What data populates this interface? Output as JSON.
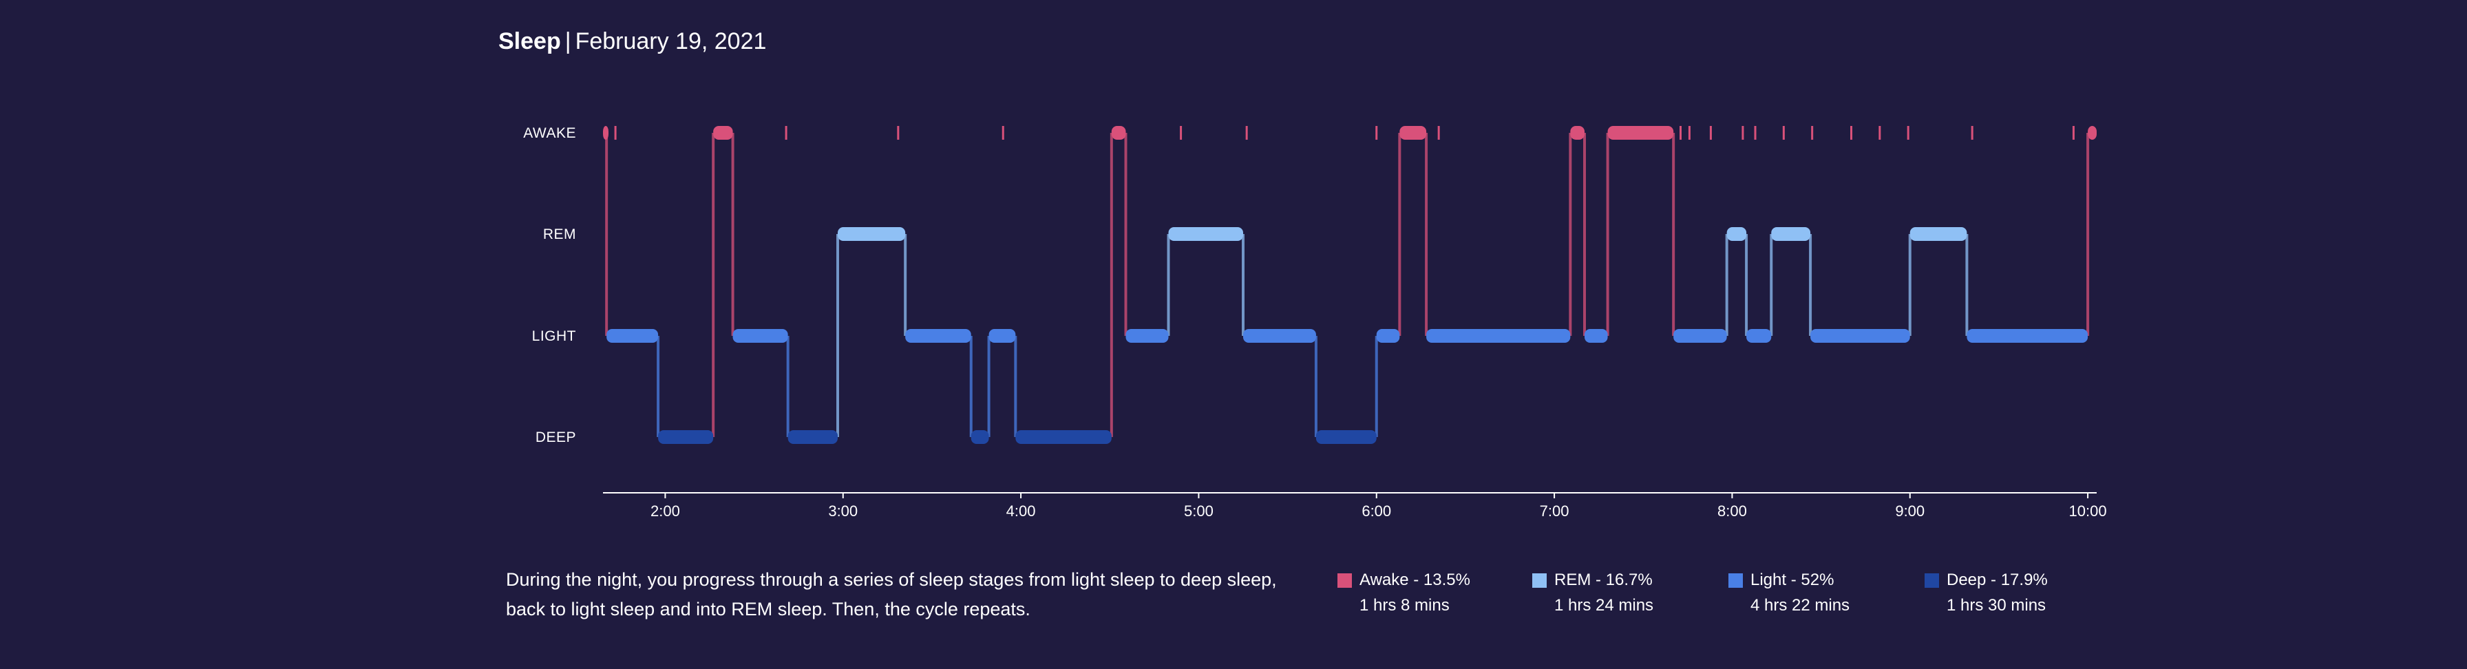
{
  "header": {
    "title": "Sleep",
    "separator": "|",
    "date": "February 19, 2021"
  },
  "description": "During the night, you progress through a series of sleep stages from light sleep to deep sleep, back to light sleep and into REM sleep. Then, the cycle repeats.",
  "legend": [
    {
      "label": "Awake - 13.5%",
      "duration": "1 hrs 8 mins",
      "color": "#d9517a"
    },
    {
      "label": "REM - 16.7%",
      "duration": "1 hrs 24 mins",
      "color": "#8fc0f5"
    },
    {
      "label": "Light - 52%",
      "duration": "4 hrs 22 mins",
      "color": "#4a80e6"
    },
    {
      "label": "Deep - 17.9%",
      "duration": "1 hrs 30 mins",
      "color": "#2047a3"
    }
  ],
  "chart_data": {
    "type": "line",
    "title": "Sleep",
    "stages": [
      "AWAKE",
      "REM",
      "LIGHT",
      "DEEP"
    ],
    "x_ticks": [
      "2:00",
      "3:00",
      "4:00",
      "5:00",
      "6:00",
      "7:00",
      "8:00",
      "9:00",
      "10:00"
    ],
    "x_range_hours": [
      1.65,
      10.05
    ],
    "stage_colors": {
      "AWAKE": "#d9517a",
      "REM": "#8fc0f5",
      "LIGHT": "#4a80e6",
      "DEEP": "#2047a3"
    },
    "segments": [
      {
        "stage": "AWAKE",
        "start": 1.65,
        "end": 1.67
      },
      {
        "stage": "LIGHT",
        "start": 1.67,
        "end": 1.96
      },
      {
        "stage": "DEEP",
        "start": 1.96,
        "end": 2.27
      },
      {
        "stage": "AWAKE",
        "start": 2.27,
        "end": 2.38
      },
      {
        "stage": "LIGHT",
        "start": 2.38,
        "end": 2.69
      },
      {
        "stage": "DEEP",
        "start": 2.69,
        "end": 2.97
      },
      {
        "stage": "REM",
        "start": 2.97,
        "end": 3.35
      },
      {
        "stage": "LIGHT",
        "start": 3.35,
        "end": 3.72
      },
      {
        "stage": "DEEP",
        "start": 3.72,
        "end": 3.82
      },
      {
        "stage": "LIGHT",
        "start": 3.82,
        "end": 3.97
      },
      {
        "stage": "DEEP",
        "start": 3.97,
        "end": 4.51
      },
      {
        "stage": "AWAKE",
        "start": 4.51,
        "end": 4.59
      },
      {
        "stage": "LIGHT",
        "start": 4.59,
        "end": 4.83
      },
      {
        "stage": "REM",
        "start": 4.83,
        "end": 5.25
      },
      {
        "stage": "LIGHT",
        "start": 5.25,
        "end": 5.66
      },
      {
        "stage": "DEEP",
        "start": 5.66,
        "end": 6.0
      },
      {
        "stage": "LIGHT",
        "start": 6.0,
        "end": 6.13
      },
      {
        "stage": "AWAKE",
        "start": 6.13,
        "end": 6.28
      },
      {
        "stage": "LIGHT",
        "start": 6.28,
        "end": 7.09
      },
      {
        "stage": "AWAKE",
        "start": 7.09,
        "end": 7.17
      },
      {
        "stage": "LIGHT",
        "start": 7.17,
        "end": 7.3
      },
      {
        "stage": "AWAKE",
        "start": 7.3,
        "end": 7.67
      },
      {
        "stage": "LIGHT",
        "start": 7.67,
        "end": 7.97
      },
      {
        "stage": "REM",
        "start": 7.97,
        "end": 8.08
      },
      {
        "stage": "LIGHT",
        "start": 8.08,
        "end": 8.22
      },
      {
        "stage": "REM",
        "start": 8.22,
        "end": 8.44
      },
      {
        "stage": "LIGHT",
        "start": 8.44,
        "end": 9.0
      },
      {
        "stage": "REM",
        "start": 9.0,
        "end": 9.32
      },
      {
        "stage": "LIGHT",
        "start": 9.32,
        "end": 10.0
      },
      {
        "stage": "AWAKE",
        "start": 10.0,
        "end": 10.05
      }
    ],
    "awake_ticks": [
      1.72,
      2.68,
      3.31,
      3.9,
      4.9,
      5.27,
      6.0,
      6.35,
      7.71,
      7.76,
      7.88,
      8.06,
      8.13,
      8.29,
      8.45,
      8.67,
      8.83,
      8.99,
      9.35,
      9.92
    ]
  }
}
